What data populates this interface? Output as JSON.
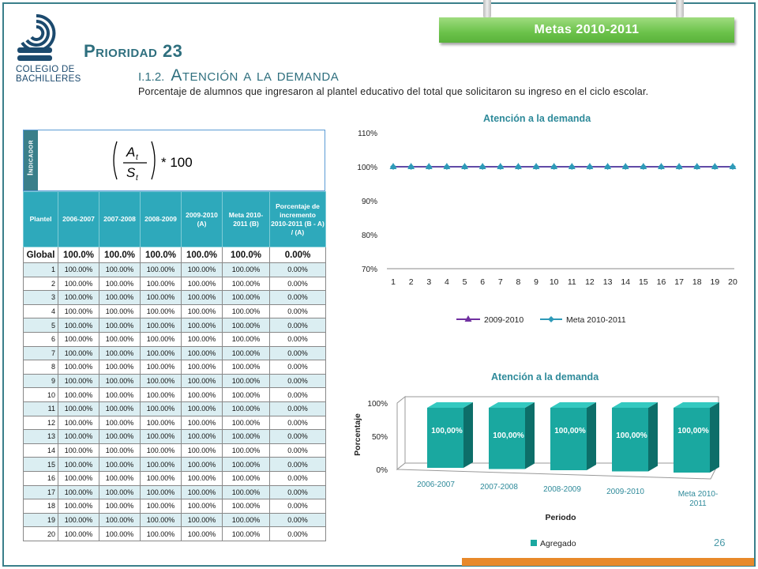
{
  "logo": {
    "line1": "COLEGIO DE",
    "line2": "BACHILLERES"
  },
  "banner": {
    "label": "Metas 2010-2011"
  },
  "title": "Prioridad 23",
  "subtitle": {
    "number": "I.1.2.",
    "text": "Atención a la demanda"
  },
  "description": "Porcentaje de alumnos que ingresaron al plantel educativo del total que solicitaron su ingreso en el ciclo escolar.",
  "indicator": {
    "label": "Indicador",
    "formula_numerator": "A",
    "formula_denominator": "S",
    "formula_subscript": "t",
    "formula_multiplier": "* 100"
  },
  "table": {
    "headers": [
      "Plantel",
      "2006-2007",
      "2007-2008",
      "2008-2009",
      "2009-2010 (A)",
      "Meta 2010-2011 (B)",
      "Porcentaje de incremento 2010-2011 (B - A) / (A)"
    ],
    "global": [
      "Global",
      "100.0%",
      "100.0%",
      "100.0%",
      "100.0%",
      "100.0%",
      "0.00%"
    ],
    "rows": [
      [
        "1",
        "100.00%",
        "100.00%",
        "100.00%",
        "100.00%",
        "100.00%",
        "0.00%"
      ],
      [
        "2",
        "100.00%",
        "100.00%",
        "100.00%",
        "100.00%",
        "100.00%",
        "0.00%"
      ],
      [
        "3",
        "100.00%",
        "100.00%",
        "100.00%",
        "100.00%",
        "100.00%",
        "0.00%"
      ],
      [
        "4",
        "100.00%",
        "100.00%",
        "100.00%",
        "100.00%",
        "100.00%",
        "0.00%"
      ],
      [
        "5",
        "100.00%",
        "100.00%",
        "100.00%",
        "100.00%",
        "100.00%",
        "0.00%"
      ],
      [
        "6",
        "100.00%",
        "100.00%",
        "100.00%",
        "100.00%",
        "100.00%",
        "0.00%"
      ],
      [
        "7",
        "100.00%",
        "100.00%",
        "100.00%",
        "100.00%",
        "100.00%",
        "0.00%"
      ],
      [
        "8",
        "100.00%",
        "100.00%",
        "100.00%",
        "100.00%",
        "100.00%",
        "0.00%"
      ],
      [
        "9",
        "100.00%",
        "100.00%",
        "100.00%",
        "100.00%",
        "100.00%",
        "0.00%"
      ],
      [
        "10",
        "100.00%",
        "100.00%",
        "100.00%",
        "100.00%",
        "100.00%",
        "0.00%"
      ],
      [
        "11",
        "100.00%",
        "100.00%",
        "100.00%",
        "100.00%",
        "100.00%",
        "0.00%"
      ],
      [
        "12",
        "100.00%",
        "100.00%",
        "100.00%",
        "100.00%",
        "100.00%",
        "0.00%"
      ],
      [
        "13",
        "100.00%",
        "100.00%",
        "100.00%",
        "100.00%",
        "100.00%",
        "0.00%"
      ],
      [
        "14",
        "100.00%",
        "100.00%",
        "100.00%",
        "100.00%",
        "100.00%",
        "0.00%"
      ],
      [
        "15",
        "100.00%",
        "100.00%",
        "100.00%",
        "100.00%",
        "100.00%",
        "0.00%"
      ],
      [
        "16",
        "100.00%",
        "100.00%",
        "100.00%",
        "100.00%",
        "100.00%",
        "0.00%"
      ],
      [
        "17",
        "100.00%",
        "100.00%",
        "100.00%",
        "100.00%",
        "100.00%",
        "0.00%"
      ],
      [
        "18",
        "100.00%",
        "100.00%",
        "100.00%",
        "100.00%",
        "100.00%",
        "0.00%"
      ],
      [
        "19",
        "100.00%",
        "100.00%",
        "100.00%",
        "100.00%",
        "100.00%",
        "0.00%"
      ],
      [
        "20",
        "100.00%",
        "100.00%",
        "100.00%",
        "100.00%",
        "100.00%",
        "0.00%"
      ]
    ]
  },
  "colors": {
    "accent": "#2e6f7e",
    "table_header": "#2ea9bb",
    "banner": "#6bc24a",
    "line_2009": "#7030a0",
    "line_meta": "#2e9ab8",
    "bar": "#1aa8a0",
    "footer_bar": "#e8892a"
  },
  "chart_data": [
    {
      "type": "line",
      "title": "Atención a la demanda",
      "x": [
        1,
        2,
        3,
        4,
        5,
        6,
        7,
        8,
        9,
        10,
        11,
        12,
        13,
        14,
        15,
        16,
        17,
        18,
        19,
        20
      ],
      "series": [
        {
          "name": "2009-2010",
          "values": [
            100,
            100,
            100,
            100,
            100,
            100,
            100,
            100,
            100,
            100,
            100,
            100,
            100,
            100,
            100,
            100,
            100,
            100,
            100,
            100
          ],
          "marker": "triangle"
        },
        {
          "name": "Meta 2010-2011",
          "values": [
            100,
            100,
            100,
            100,
            100,
            100,
            100,
            100,
            100,
            100,
            100,
            100,
            100,
            100,
            100,
            100,
            100,
            100,
            100,
            100
          ],
          "marker": "diamond"
        }
      ],
      "yticks": [
        "70%",
        "80%",
        "90%",
        "100%",
        "110%"
      ],
      "ylim": [
        70,
        110
      ],
      "legend": "bottom",
      "grid": false
    },
    {
      "type": "bar",
      "title": "Atención a la demanda",
      "categories": [
        "2006-2007",
        "2007-2008",
        "2008-2009",
        "2009-2010",
        "Meta 2010-2011"
      ],
      "series": [
        {
          "name": "Agregado",
          "values": [
            100,
            100,
            100,
            100,
            100
          ]
        }
      ],
      "data_labels": [
        "100,00%",
        "100,00%",
        "100,00%",
        "100,00%",
        "100,00%"
      ],
      "yticks": [
        "0%",
        "50%",
        "100%"
      ],
      "ylim": [
        0,
        100
      ],
      "xlabel": "Periodo",
      "ylabel": "Porcentaje",
      "legend": "bottom",
      "style": "3d"
    }
  ],
  "page_number": "26"
}
